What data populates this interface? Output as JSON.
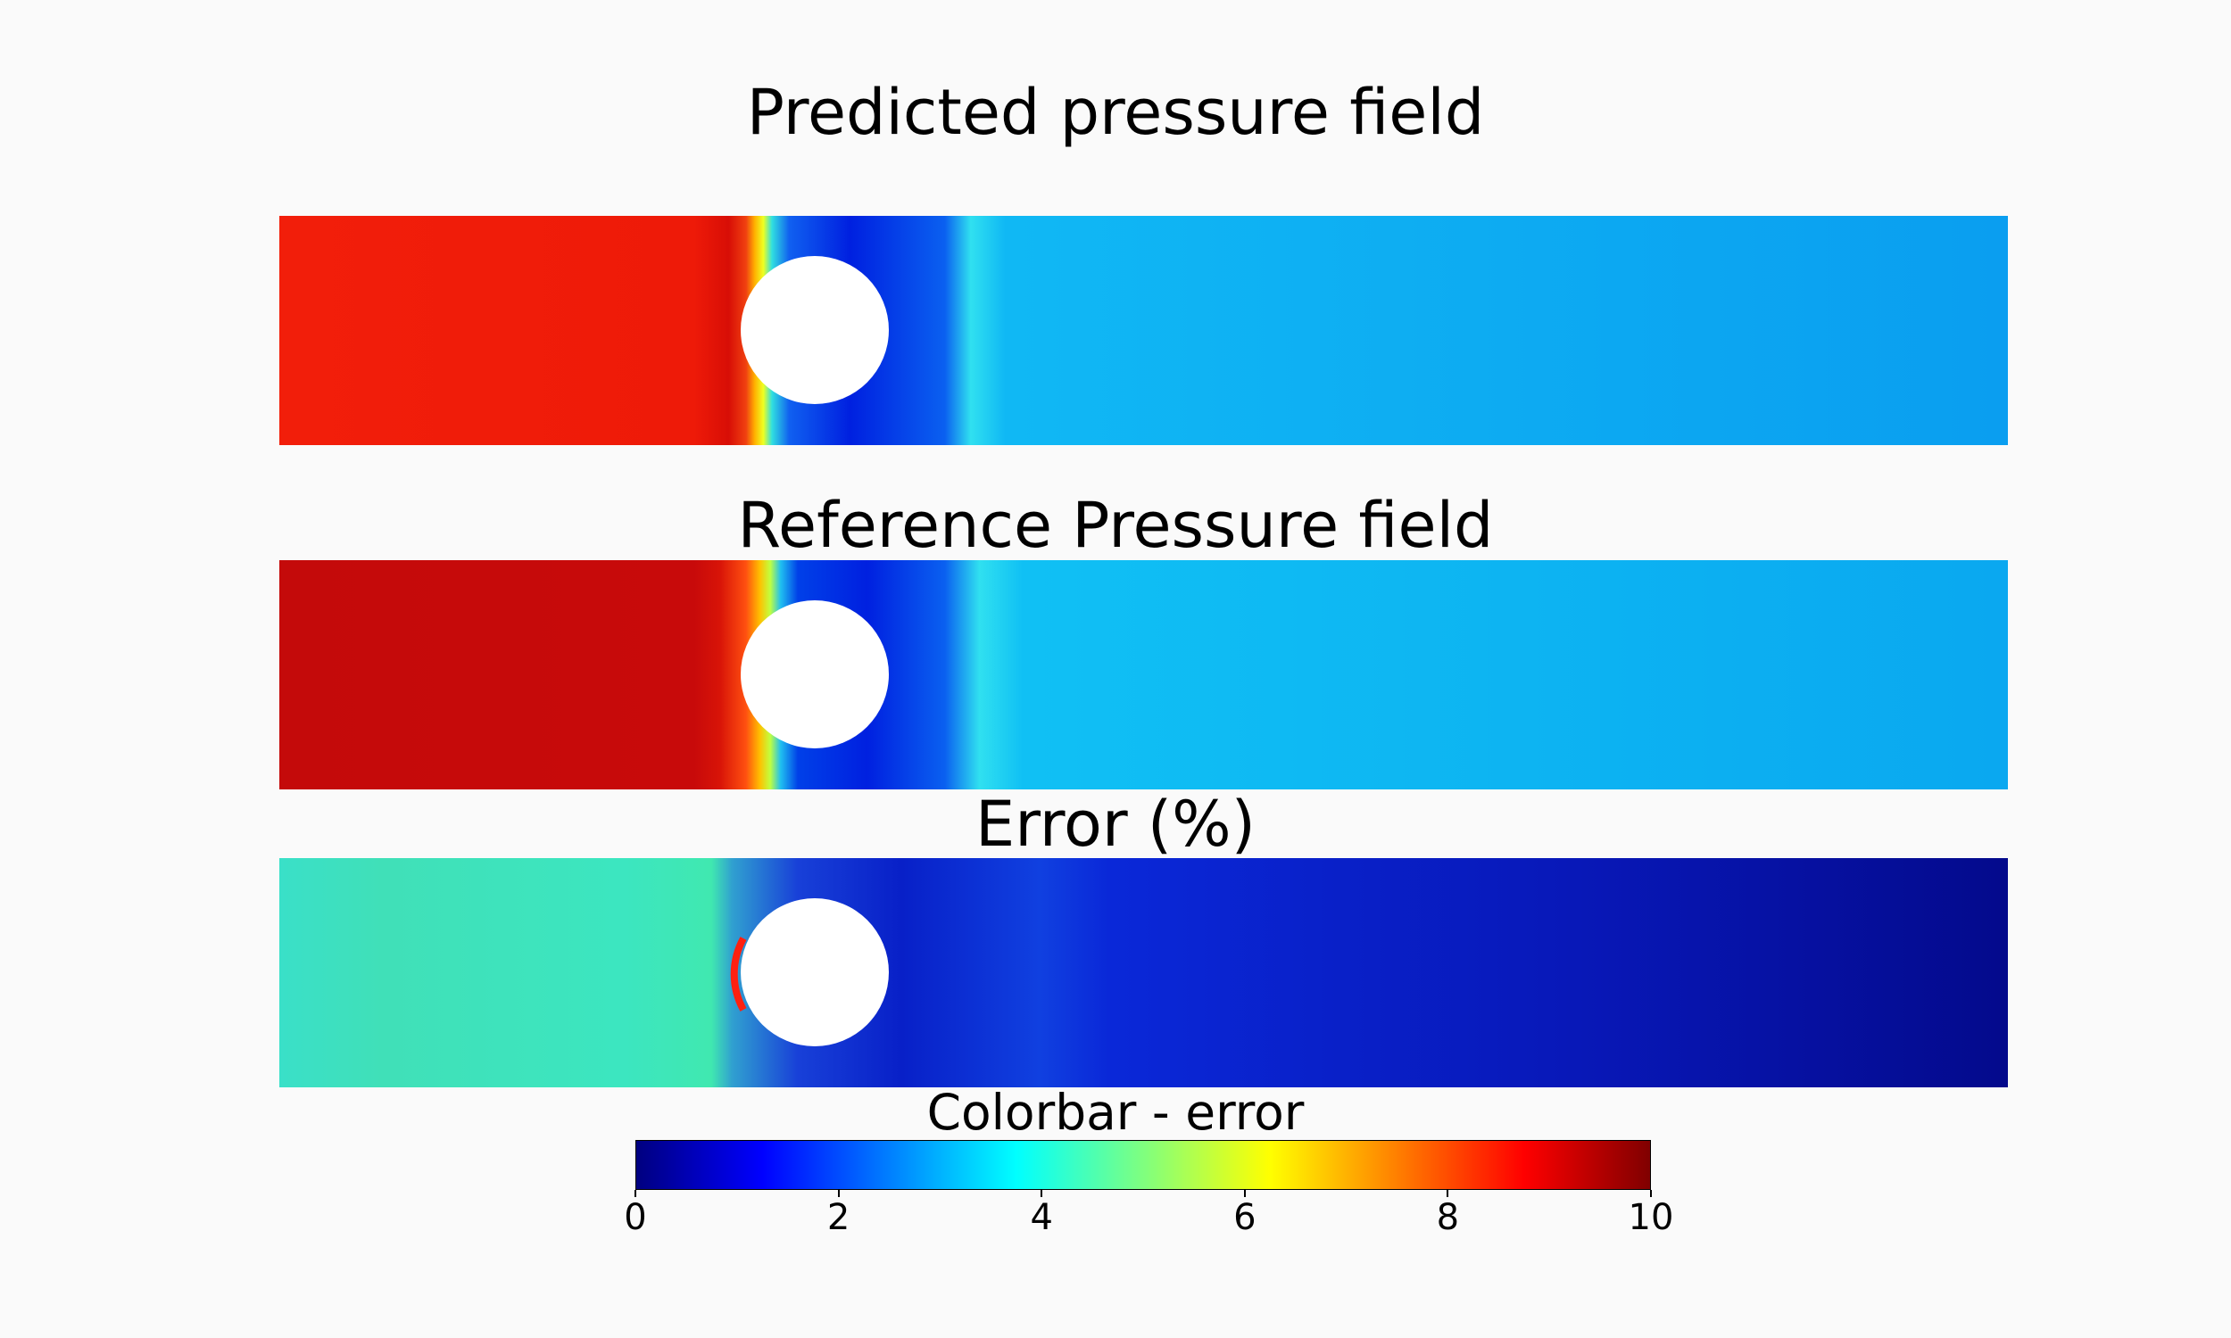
{
  "chart_data": [
    {
      "type": "heatmap",
      "title": "Predicted pressure field",
      "description_field": "pressure",
      "colormap": "jet",
      "obstacle": "circle"
    },
    {
      "type": "heatmap",
      "title": "Reference Pressure field",
      "description_field": "pressure",
      "colormap": "jet",
      "obstacle": "circle"
    },
    {
      "type": "heatmap",
      "title": "Error (%)",
      "description_field": "error",
      "colormap": "jet",
      "obstacle": "circle"
    }
  ],
  "colorbar": {
    "title": "Colorbar - error",
    "range": [
      0,
      10
    ],
    "ticks": [
      0,
      2,
      4,
      6,
      8,
      10
    ],
    "tick_labels": [
      "0",
      "2",
      "4",
      "6",
      "8",
      "10"
    ],
    "colormap_stops": [
      "#00007f",
      "#0000ff",
      "#007fff",
      "#00ffff",
      "#7fff7f",
      "#ffff00",
      "#ff7f00",
      "#ff0000",
      "#7f0000"
    ]
  },
  "colors": {
    "background": "#fafafa",
    "predicted_upstream": "#f01a08",
    "reference_upstream": "#c80a0a",
    "downstream": "#0aa8f0",
    "error_upstream": "#3ae6c0",
    "error_downstream": "#0612b4"
  }
}
